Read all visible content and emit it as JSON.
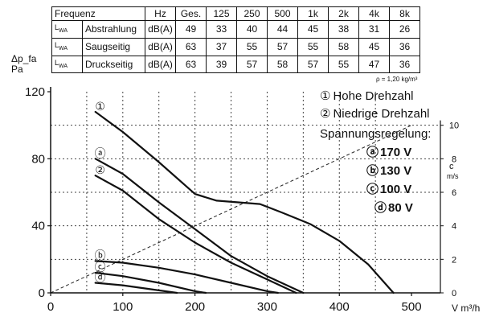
{
  "table": {
    "header": [
      "Frequenz",
      "Hz",
      "Ges.",
      "125",
      "250",
      "500",
      "1k",
      "2k",
      "4k",
      "8k"
    ],
    "rows": [
      {
        "symbol": "L",
        "symbol_sub": "WA",
        "label": "Abstrahlung",
        "unit": "dB(A)",
        "values": [
          "49",
          "33",
          "40",
          "44",
          "45",
          "38",
          "31",
          "26"
        ]
      },
      {
        "symbol": "L",
        "symbol_sub": "WA",
        "label": "Saugseitig",
        "unit": "dB(A)",
        "values": [
          "63",
          "37",
          "55",
          "57",
          "55",
          "58",
          "45",
          "36"
        ]
      },
      {
        "symbol": "L",
        "symbol_sub": "WA",
        "label": "Druckseitig",
        "unit": "dB(A)",
        "values": [
          "63",
          "39",
          "57",
          "58",
          "57",
          "55",
          "47",
          "36"
        ]
      }
    ]
  },
  "density_note": "ρ = 1,20 kg/m³",
  "legend": {
    "items": [
      {
        "marker": "①",
        "text": "Hohe Drehzahl"
      },
      {
        "marker": "②",
        "text": "Niedrige Drehzahl"
      }
    ],
    "subtitle": "Spannungsregelung:",
    "voltages": [
      {
        "marker": "ⓐ",
        "text": "170 V"
      },
      {
        "marker": "ⓑ",
        "text": "130 V"
      },
      {
        "marker": "ⓒ",
        "text": "100 V"
      },
      {
        "marker": "ⓓ",
        "text": "80 V"
      }
    ]
  },
  "curve_labels": [
    "①",
    "ⓐ",
    "②",
    "ⓑ",
    "ⓒ",
    "ⓓ"
  ],
  "chart_data": {
    "type": "line",
    "ylabel": "Δp_fa",
    "ylabel_unit": "Pa",
    "xlabel": "V m³/h",
    "y2label": "c",
    "y2label_unit": "m/s",
    "xlim": [
      0,
      540
    ],
    "ylim": [
      0,
      120
    ],
    "y2lim": [
      0,
      10
    ],
    "xticks": [
      0,
      100,
      200,
      300,
      400,
      500
    ],
    "yticks": [
      0,
      40,
      80,
      120
    ],
    "y2ticks": [
      0,
      2,
      4,
      6,
      8,
      10
    ],
    "grid_x": [
      50,
      100,
      150,
      200,
      250,
      300,
      350,
      400,
      450
    ],
    "grid_y": [
      20,
      40,
      60,
      80,
      100
    ],
    "series": [
      {
        "values": [
          [
            62,
            108
          ],
          [
            100,
            96
          ],
          [
            150,
            78
          ],
          [
            200,
            59
          ],
          [
            230,
            55
          ],
          [
            260,
            54
          ],
          [
            290,
            53
          ],
          [
            320,
            48
          ],
          [
            360,
            41
          ],
          [
            400,
            31
          ],
          [
            440,
            17
          ],
          [
            475,
            0
          ]
        ]
      },
      {
        "values": [
          [
            62,
            80
          ],
          [
            100,
            71
          ],
          [
            150,
            54
          ],
          [
            200,
            38
          ],
          [
            250,
            22
          ],
          [
            300,
            10
          ],
          [
            350,
            0
          ]
        ]
      },
      {
        "values": [
          [
            62,
            70
          ],
          [
            100,
            61
          ],
          [
            150,
            44
          ],
          [
            200,
            30
          ],
          [
            250,
            18
          ],
          [
            300,
            8
          ],
          [
            340,
            0
          ]
        ]
      },
      {
        "values": [
          [
            62,
            19
          ],
          [
            100,
            18
          ],
          [
            150,
            15
          ],
          [
            200,
            11
          ],
          [
            250,
            6
          ],
          [
            300,
            1
          ],
          [
            315,
            0
          ]
        ]
      },
      {
        "values": [
          [
            62,
            12
          ],
          [
            100,
            10
          ],
          [
            150,
            6
          ],
          [
            200,
            1
          ],
          [
            215,
            0
          ]
        ]
      },
      {
        "values": [
          [
            62,
            6
          ],
          [
            100,
            4.5
          ],
          [
            150,
            1.5
          ],
          [
            175,
            0
          ]
        ]
      }
    ],
    "reference_line": {
      "x": [
        0,
        500
      ],
      "y": [
        0,
        10
      ],
      "axis": "y2"
    }
  }
}
